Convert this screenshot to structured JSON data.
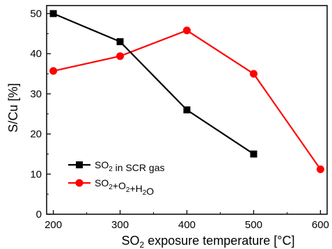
{
  "chart_data": {
    "type": "line",
    "title": "",
    "xlabel": "SO2 exposure temperature [°C]",
    "ylabel": "S/Cu [%]",
    "xlim": [
      190,
      610
    ],
    "ylim": [
      0,
      52
    ],
    "xticks": [
      200,
      300,
      400,
      500,
      600
    ],
    "yticks": [
      0,
      10,
      20,
      30,
      40,
      50
    ],
    "grid": false,
    "legend_position": "bottom-left",
    "series": [
      {
        "name": "SO2 in SCR gas",
        "color": "#000000",
        "marker": "square",
        "x": [
          200,
          300,
          400,
          500
        ],
        "y": [
          50,
          43,
          26,
          15
        ]
      },
      {
        "name": "SO2+O2+H2O",
        "color": "#ff0000",
        "marker": "circle",
        "x": [
          200,
          300,
          400,
          500,
          600
        ],
        "y": [
          35.7,
          39.4,
          45.8,
          35,
          11.2
        ]
      }
    ]
  }
}
